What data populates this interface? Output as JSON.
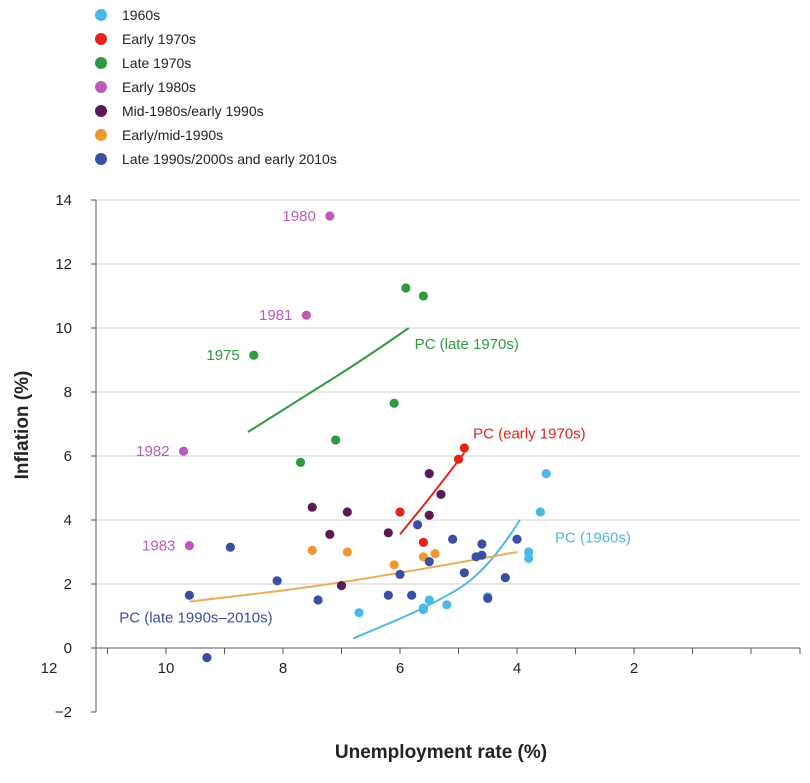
{
  "chart_data": {
    "type": "scatter",
    "xlabel": "Unemployment rate (%)",
    "ylabel": "Inflation (%)",
    "x_reversed": true,
    "xlim": [
      0,
      12.3
    ],
    "ylim": [
      -2,
      14
    ],
    "x_ticks": [
      "12",
      "10",
      "8",
      "6",
      "4",
      "2"
    ],
    "x_tick_values": [
      12,
      10,
      8,
      6,
      4,
      2
    ],
    "y_ticks": [
      "14",
      "12",
      "10",
      "8",
      "6",
      "4",
      "2",
      "0",
      "−2"
    ],
    "y_tick_values": [
      14,
      12,
      10,
      8,
      6,
      4,
      2,
      0,
      -2
    ],
    "grid": "horizontal",
    "legend_position": "top-left",
    "series": [
      {
        "name": "1960s",
        "color": "#4cb8e4",
        "points": [
          [
            3.5,
            5.45
          ],
          [
            3.6,
            4.25
          ],
          [
            3.8,
            3.0
          ],
          [
            3.8,
            2.8
          ],
          [
            4.5,
            1.6
          ],
          [
            5.2,
            1.35
          ],
          [
            5.5,
            1.5
          ],
          [
            5.6,
            1.25
          ],
          [
            5.6,
            1.2
          ],
          [
            6.7,
            1.1
          ]
        ]
      },
      {
        "name": "Early 1970s",
        "color": "#e2241b",
        "points": [
          [
            4.9,
            6.25
          ],
          [
            5.0,
            5.9
          ],
          [
            5.6,
            3.3
          ],
          [
            6.0,
            4.25
          ]
        ]
      },
      {
        "name": "Late 1970s",
        "color": "#2f9a42",
        "points": [
          [
            5.9,
            11.25
          ],
          [
            5.6,
            11.0
          ],
          [
            8.5,
            9.15
          ],
          [
            6.1,
            7.65
          ],
          [
            7.1,
            6.5
          ],
          [
            7.7,
            5.8
          ]
        ]
      },
      {
        "name": "Early 1980s",
        "color": "#bd59b7",
        "points": [
          [
            7.2,
            13.5
          ],
          [
            7.6,
            10.4
          ],
          [
            9.7,
            6.15
          ],
          [
            9.6,
            3.2
          ]
        ]
      },
      {
        "name": "Mid-1980s/early 1990s",
        "color": "#5b1a54",
        "points": [
          [
            5.5,
            5.45
          ],
          [
            5.3,
            4.8
          ],
          [
            5.5,
            4.15
          ],
          [
            7.5,
            4.4
          ],
          [
            6.9,
            4.25
          ],
          [
            7.2,
            3.55
          ],
          [
            6.2,
            3.6
          ],
          [
            7.0,
            1.95
          ]
        ]
      },
      {
        "name": "Early/mid-1990s",
        "color": "#ec9a30",
        "points": [
          [
            7.5,
            3.05
          ],
          [
            6.9,
            3.0
          ],
          [
            5.4,
            2.95
          ],
          [
            5.6,
            2.85
          ],
          [
            6.1,
            2.6
          ]
        ]
      },
      {
        "name": "Late 1990s/2000s and early 2010s",
        "color": "#3a4ea3",
        "points": [
          [
            9.3,
            -0.3
          ],
          [
            9.6,
            1.65
          ],
          [
            8.9,
            3.15
          ],
          [
            8.1,
            2.1
          ],
          [
            7.4,
            1.5
          ],
          [
            6.2,
            1.65
          ],
          [
            5.8,
            1.65
          ],
          [
            5.5,
            2.7
          ],
          [
            5.7,
            3.85
          ],
          [
            5.1,
            3.4
          ],
          [
            4.9,
            2.35
          ],
          [
            4.7,
            2.85
          ],
          [
            4.6,
            2.9
          ],
          [
            4.6,
            3.25
          ],
          [
            4.5,
            1.55
          ],
          [
            4.0,
            3.4
          ],
          [
            4.2,
            2.2
          ],
          [
            6.0,
            2.3
          ]
        ]
      }
    ],
    "annotations": [
      {
        "text": "1980",
        "x": 7.2,
        "y": 13.5,
        "color": "#bd59b7"
      },
      {
        "text": "1981",
        "x": 7.6,
        "y": 10.4,
        "color": "#bd59b7"
      },
      {
        "text": "1975",
        "x": 8.5,
        "y": 9.15,
        "color": "#2f9a42"
      },
      {
        "text": "1982",
        "x": 9.7,
        "y": 6.15,
        "color": "#bd59b7"
      },
      {
        "text": "1983",
        "x": 9.6,
        "y": 3.2,
        "color": "#bd59b7"
      }
    ],
    "curves": [
      {
        "label": "PC (late 1970s)",
        "color": "#2f9a42",
        "points": [
          [
            8.6,
            6.75
          ],
          [
            7.6,
            7.9
          ],
          [
            6.6,
            9.05
          ],
          [
            5.85,
            10.0
          ]
        ],
        "label_at": [
          5.75,
          9.35
        ]
      },
      {
        "label": "PC (early 1970s)",
        "color": "#e2241b",
        "points": [
          [
            6.0,
            3.55
          ],
          [
            5.4,
            4.9
          ],
          [
            4.9,
            6.1
          ]
        ],
        "label_at": [
          4.75,
          6.55
        ]
      },
      {
        "label": "PC (1960s)",
        "color": "#4cb8e4",
        "points": [
          [
            6.8,
            0.3
          ],
          [
            5.5,
            1.3
          ],
          [
            4.5,
            2.4
          ],
          [
            3.95,
            4.0
          ]
        ],
        "label_at": [
          3.35,
          3.3
        ]
      },
      {
        "label": "PC (late 1990s–2010s)",
        "color": "#e8ad5a",
        "points": [
          [
            9.6,
            1.45
          ],
          [
            7.5,
            1.9
          ],
          [
            5.5,
            2.5
          ],
          [
            4.0,
            3.0
          ]
        ],
        "label_at": [
          10.8,
          0.8
        ]
      }
    ]
  }
}
